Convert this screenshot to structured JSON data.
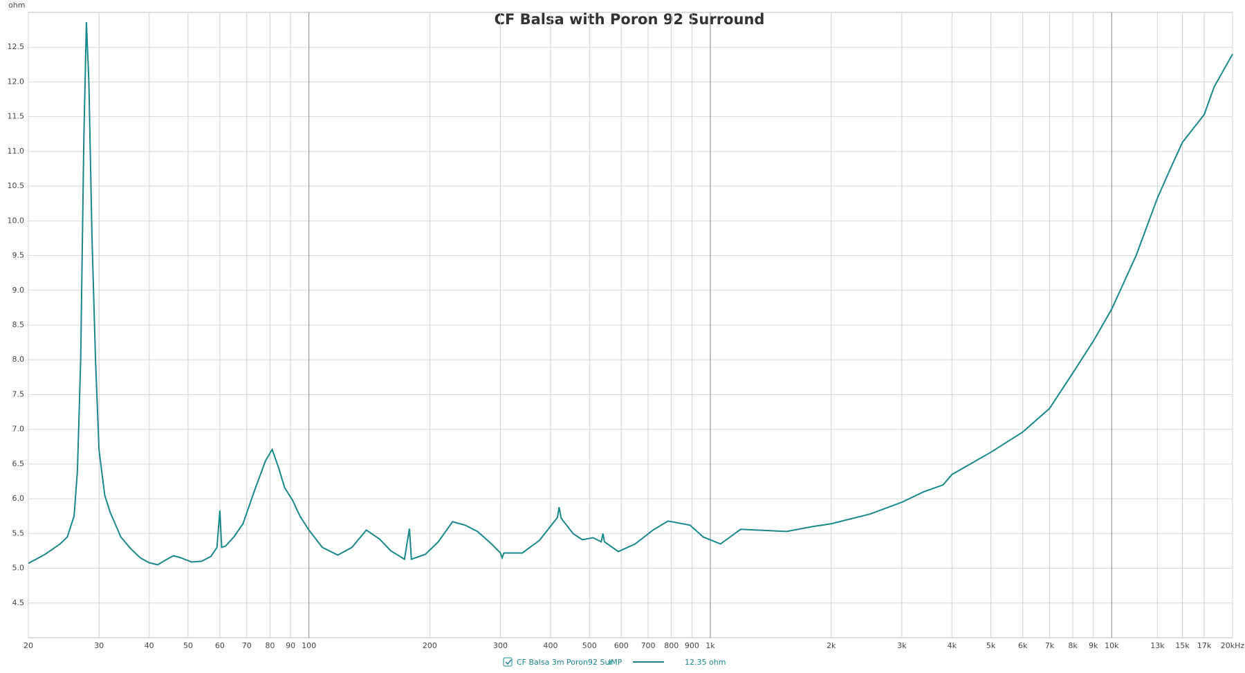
{
  "chart_data": {
    "type": "line",
    "title": "CF Balsa with Poron 92 Surround",
    "y_label": "ohm",
    "log_x": true,
    "grid": true,
    "x": [
      20,
      22,
      24,
      25,
      26,
      26.5,
      27,
      27.5,
      27.9,
      28.3,
      28.8,
      29.4,
      30,
      31,
      32,
      34,
      36,
      38,
      40,
      42,
      44,
      46,
      48,
      51,
      54,
      57,
      59,
      60,
      60.6,
      62,
      65,
      68.5,
      73,
      78,
      81,
      84,
      87,
      91,
      95,
      100,
      108,
      118,
      128,
      139,
      150,
      160,
      173,
      178,
      180,
      195,
      210,
      228,
      245,
      263,
      285,
      300,
      303,
      306,
      340,
      375,
      416,
      420,
      425,
      455,
      480,
      510,
      535,
      540,
      545,
      590,
      650,
      720,
      785,
      890,
      960,
      1060,
      1190,
      1550,
      1800,
      2000,
      2500,
      3000,
      3400,
      3800,
      4000,
      5000,
      6000,
      7000,
      8000,
      9000,
      10000,
      11500,
      13000,
      14000,
      15000,
      17000,
      18000,
      20000
    ],
    "series": [
      {
        "name": "CF Balsa 3m Poron92 Sur",
        "measurement": "IMP",
        "readout": "12.35 ohm",
        "color": "#17878a",
        "values": [
          5.07,
          5.2,
          5.35,
          5.45,
          5.75,
          6.4,
          8.0,
          11.2,
          12.86,
          12.0,
          9.8,
          8.0,
          6.7,
          6.05,
          5.8,
          5.45,
          5.28,
          5.15,
          5.08,
          5.05,
          5.12,
          5.18,
          5.15,
          5.09,
          5.1,
          5.17,
          5.3,
          5.83,
          5.3,
          5.32,
          5.45,
          5.64,
          6.1,
          6.55,
          6.71,
          6.45,
          6.16,
          5.98,
          5.75,
          5.55,
          5.3,
          5.19,
          5.3,
          5.55,
          5.42,
          5.25,
          5.13,
          5.57,
          5.13,
          5.2,
          5.38,
          5.67,
          5.62,
          5.53,
          5.35,
          5.22,
          5.15,
          5.22,
          5.22,
          5.4,
          5.73,
          5.88,
          5.72,
          5.5,
          5.41,
          5.44,
          5.38,
          5.5,
          5.38,
          5.24,
          5.35,
          5.55,
          5.68,
          5.62,
          5.45,
          5.35,
          5.56,
          5.53,
          5.6,
          5.64,
          5.78,
          5.95,
          6.1,
          6.2,
          6.35,
          6.67,
          6.96,
          7.3,
          7.81,
          8.27,
          8.73,
          9.5,
          10.33,
          10.75,
          11.13,
          11.53,
          11.93,
          12.4
        ]
      }
    ],
    "xlim": [
      20,
      20000
    ],
    "xticks": [
      20,
      30,
      40,
      50,
      60,
      70,
      80,
      90,
      100,
      200,
      300,
      400,
      500,
      600,
      700,
      800,
      900,
      {
        "value": 1000,
        "label": "1k"
      },
      {
        "value": 2000,
        "label": "2k"
      },
      {
        "value": 3000,
        "label": "3k"
      },
      {
        "value": 4000,
        "label": "4k"
      },
      {
        "value": 5000,
        "label": "5k"
      },
      {
        "value": 6000,
        "label": "6k"
      },
      {
        "value": 7000,
        "label": "7k"
      },
      {
        "value": 8000,
        "label": "8k"
      },
      {
        "value": 9000,
        "label": "9k"
      },
      {
        "value": 10000,
        "label": "10k"
      },
      {
        "value": 13000,
        "label": "13k"
      },
      {
        "value": 15000,
        "label": "15k"
      },
      {
        "value": 17000,
        "label": "17k"
      },
      {
        "value": 20000,
        "label": "20kHz"
      }
    ],
    "ylim": [
      4.0,
      13.0
    ],
    "yticks": [
      4.5,
      {
        "value": 5,
        "label": "5.0"
      },
      5.5,
      {
        "value": 6,
        "label": "6.0"
      },
      6.5,
      {
        "value": 7,
        "label": "7.0"
      },
      7.5,
      {
        "value": 8,
        "label": "8.0"
      },
      8.5,
      {
        "value": 9,
        "label": "9.0"
      },
      9.5,
      {
        "value": 10,
        "label": "10.0"
      },
      10.5,
      {
        "value": 11,
        "label": "11.0"
      },
      11.5,
      {
        "value": 12,
        "label": "12.0"
      },
      12.5
    ]
  }
}
